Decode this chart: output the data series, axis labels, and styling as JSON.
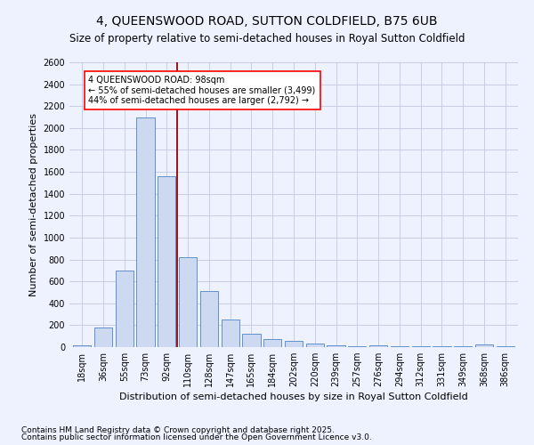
{
  "title": "4, QUEENSWOOD ROAD, SUTTON COLDFIELD, B75 6UB",
  "subtitle": "Size of property relative to semi-detached houses in Royal Sutton Coldfield",
  "xlabel": "Distribution of semi-detached houses by size in Royal Sutton Coldfield",
  "ylabel": "Number of semi-detached properties",
  "categories": [
    "18sqm",
    "36sqm",
    "55sqm",
    "73sqm",
    "92sqm",
    "110sqm",
    "128sqm",
    "147sqm",
    "165sqm",
    "184sqm",
    "202sqm",
    "220sqm",
    "239sqm",
    "257sqm",
    "276sqm",
    "294sqm",
    "312sqm",
    "331sqm",
    "349sqm",
    "368sqm",
    "386sqm"
  ],
  "values": [
    20,
    175,
    700,
    2100,
    1560,
    820,
    510,
    250,
    120,
    70,
    60,
    30,
    15,
    5,
    15,
    5,
    5,
    5,
    5,
    25,
    5
  ],
  "bar_color": "#ccd9f0",
  "bar_edge_color": "#6090cc",
  "ylim": [
    0,
    2600
  ],
  "yticks": [
    0,
    200,
    400,
    600,
    800,
    1000,
    1200,
    1400,
    1600,
    1800,
    2000,
    2200,
    2400,
    2600
  ],
  "property_size": 98,
  "pct_smaller": 55,
  "pct_larger": 44,
  "count_smaller": 3499,
  "count_larger": 2792,
  "footer1": "Contains HM Land Registry data © Crown copyright and database right 2025.",
  "footer2": "Contains public sector information licensed under the Open Government Licence v3.0.",
  "bg_color": "#eef2ff",
  "grid_color": "#c0c8e0",
  "title_fontsize": 10,
  "subtitle_fontsize": 8.5,
  "tick_fontsize": 7,
  "ylabel_fontsize": 8,
  "xlabel_fontsize": 8,
  "footer_fontsize": 6.5,
  "annot_fontsize": 7
}
